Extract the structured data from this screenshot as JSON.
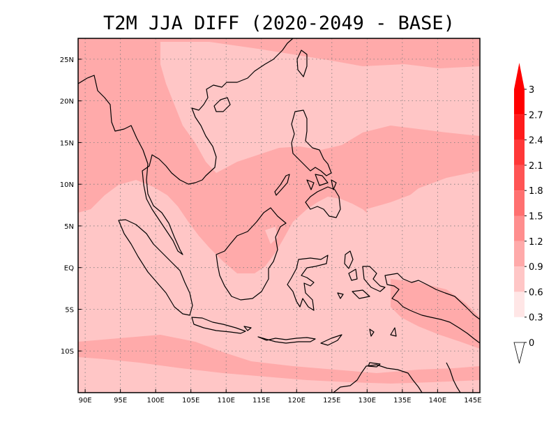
{
  "title": "T2M JJA DIFF (2020-2049 - BASE)",
  "map": {
    "lon_min": 89,
    "lon_max": 146,
    "lat_min": -15,
    "lat_max": 27.5,
    "lon_ticks": [
      {
        "value": 90,
        "label": "90E"
      },
      {
        "value": 95,
        "label": "95E"
      },
      {
        "value": 100,
        "label": "100E"
      },
      {
        "value": 105,
        "label": "105E"
      },
      {
        "value": 110,
        "label": "110E"
      },
      {
        "value": 115,
        "label": "115E"
      },
      {
        "value": 120,
        "label": "120E"
      },
      {
        "value": 125,
        "label": "125E"
      },
      {
        "value": 130,
        "label": "130E"
      },
      {
        "value": 135,
        "label": "135E"
      },
      {
        "value": 140,
        "label": "140E"
      },
      {
        "value": 145,
        "label": "145E"
      }
    ],
    "lat_ticks": [
      {
        "value": 25,
        "label": "25N"
      },
      {
        "value": 20,
        "label": "20N"
      },
      {
        "value": 15,
        "label": "15N"
      },
      {
        "value": 10,
        "label": "10N"
      },
      {
        "value": 5,
        "label": "5N"
      },
      {
        "value": 0,
        "label": "EQ"
      },
      {
        "value": -5,
        "label": "5S"
      },
      {
        "value": -10,
        "label": "10S"
      }
    ],
    "background_color": "#ffc6c6",
    "grid": "dotted"
  },
  "colorbar": {
    "levels": [
      "0",
      "0.3",
      "0.6",
      "0.9",
      "1.2",
      "1.5",
      "1.8",
      "2.1",
      "2.4",
      "2.7",
      "3"
    ],
    "colors": [
      "#ffffff",
      "#ffe6e6",
      "#ffc6c6",
      "#ffaaaa",
      "#ff8e8e",
      "#ff7070",
      "#ff5454",
      "#ff3838",
      "#ff1c1c",
      "#ff0000",
      "#ff0000"
    ]
  }
}
